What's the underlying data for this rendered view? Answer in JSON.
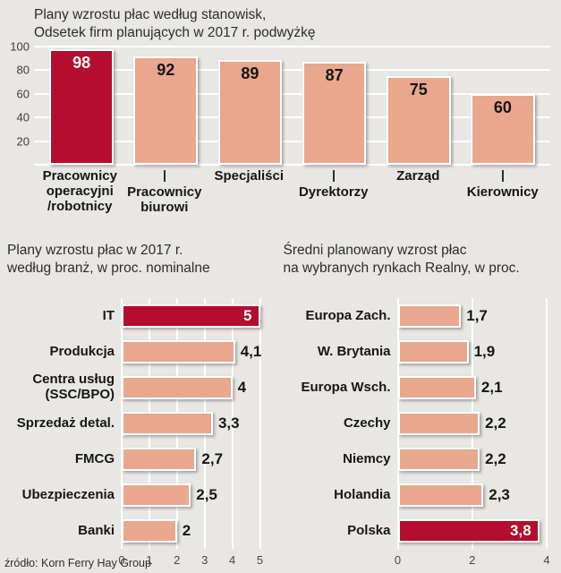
{
  "colors": {
    "background": "#e9e7e4",
    "bar": "#e9a78d",
    "accent": "#b50d2e",
    "grid": "#ffffff",
    "text": "#1f1f1f"
  },
  "source": "źródło: Korn Ferry Hay Group",
  "chart_data": [
    {
      "id": "positions",
      "type": "bar",
      "title": "Plany wzrostu płac według stanowisk,",
      "subtitle": "Odsetek firm planujących w 2017 r. podwyżkę",
      "categories": [
        "Pracownicy operacyjni /robotnicy",
        "Pracownicy biurowi",
        "Specjaliści",
        "Dyrektorzy",
        "Zarząd",
        "Kierownicy"
      ],
      "category_lines": [
        [
          "Pracownicy",
          "operacyjni",
          "/robotnicy"
        ],
        [
          "Pracownicy",
          "biurowi"
        ],
        [
          "Specjaliści"
        ],
        [
          "Dyrektorzy"
        ],
        [
          "Zarząd"
        ],
        [
          "Kierownicy"
        ]
      ],
      "staggered": [
        false,
        true,
        false,
        true,
        false,
        true
      ],
      "values": [
        98,
        92,
        89,
        87,
        75,
        60
      ],
      "value_labels": [
        "98",
        "92",
        "89",
        "87",
        "75",
        "60"
      ],
      "highlight_index": 0,
      "ylim": [
        0,
        100
      ],
      "yticks": [
        20,
        40,
        60,
        80,
        100
      ],
      "grid": true,
      "legend": false
    },
    {
      "id": "industries",
      "type": "bar",
      "orientation": "horizontal",
      "title": "Plany wzrostu płac w 2017 r.",
      "subtitle": "według branż, w proc. nominalne",
      "categories": [
        "IT",
        "Produkcja",
        "Centra usług (SSC/BPO)",
        "Sprzedaż detal.",
        "FMCG",
        "Ubezpieczenia",
        "Banki"
      ],
      "category_lines": [
        [
          "IT"
        ],
        [
          "Produkcja"
        ],
        [
          "Centra usług",
          "(SSC/BPO)"
        ],
        [
          "Sprzedaż detal."
        ],
        [
          "FMCG"
        ],
        [
          "Ubezpieczenia"
        ],
        [
          "Banki"
        ]
      ],
      "values": [
        5,
        4.1,
        4,
        3.3,
        2.7,
        2.5,
        2
      ],
      "value_labels": [
        "5",
        "4,1",
        "4",
        "3,3",
        "2,7",
        "2,5",
        "2"
      ],
      "highlight_index": 0,
      "xlim": [
        0,
        5
      ],
      "xticks": [
        0,
        1,
        2,
        3,
        4,
        5
      ],
      "grid": true,
      "legend": false
    },
    {
      "id": "markets",
      "type": "bar",
      "orientation": "horizontal",
      "title": "Średni planowany wzrost płac",
      "subtitle": "na wybranych rynkach Realny, w proc.",
      "categories": [
        "Europa Zach.",
        "W. Brytania",
        "Europa Wsch.",
        "Czechy",
        "Niemcy",
        "Holandia",
        "Polska"
      ],
      "category_lines": [
        [
          "Europa Zach."
        ],
        [
          "W. Brytania"
        ],
        [
          "Europa Wsch."
        ],
        [
          "Czechy"
        ],
        [
          "Niemcy"
        ],
        [
          "Holandia"
        ],
        [
          "Polska"
        ]
      ],
      "values": [
        1.7,
        1.9,
        2.1,
        2.2,
        2.2,
        2.3,
        3.8
      ],
      "value_labels": [
        "1,7",
        "1,9",
        "2,1",
        "2,2",
        "2,2",
        "2,3",
        "3,8"
      ],
      "highlight_index": 6,
      "xlim": [
        0,
        4
      ],
      "xticks": [
        0,
        2,
        4
      ],
      "grid": true,
      "legend": false
    }
  ]
}
